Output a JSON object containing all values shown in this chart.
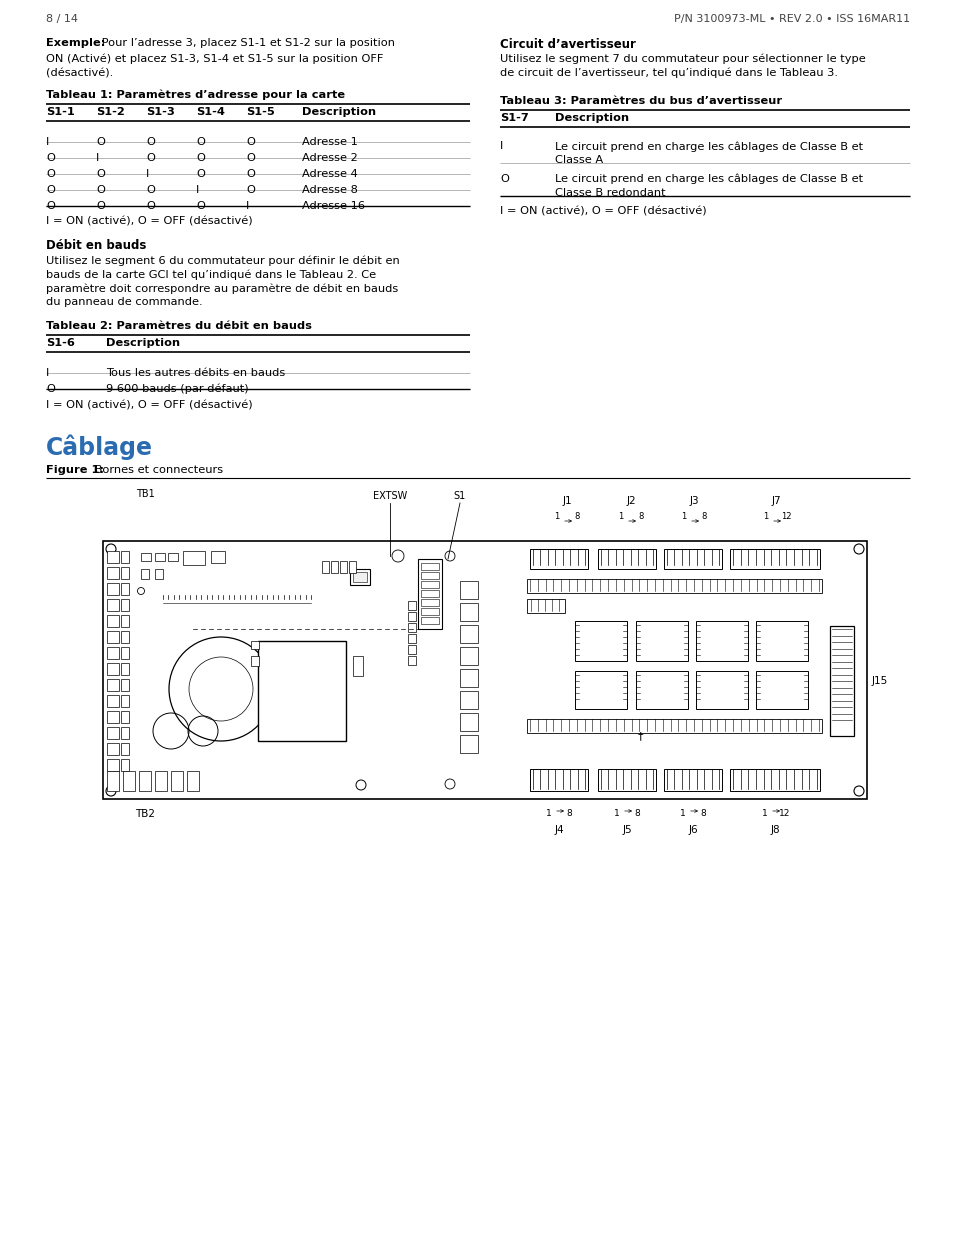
{
  "bg_color": "#ffffff",
  "page_width": 9.54,
  "page_height": 12.35,
  "left_col": {
    "example_bold": "Exemple:",
    "example_rest_line1": " Pour l’adresse 3, placez S1-1 et S1-2 sur la position",
    "example_line2": "ON (Activé) et placez S1-3, S1-4 et S1-5 sur la position OFF",
    "example_line3": "(désactivé).",
    "table1_title": "Tableau 1: Paramètres d’adresse pour la carte",
    "table1_headers": [
      "S1-1",
      "S1-2",
      "S1-3",
      "S1-4",
      "S1-5",
      "Description"
    ],
    "table1_rows": [
      [
        "I",
        "O",
        "O",
        "O",
        "O",
        "Adresse 1"
      ],
      [
        "O",
        "I",
        "O",
        "O",
        "O",
        "Adresse 2"
      ],
      [
        "O",
        "O",
        "I",
        "O",
        "O",
        "Adresse 4"
      ],
      [
        "O",
        "O",
        "O",
        "I",
        "O",
        "Adresse 8"
      ],
      [
        "O",
        "O",
        "O",
        "O",
        "I",
        "Adresse 16"
      ]
    ],
    "table1_note": "I = ON (activé), O = OFF (désactivé)",
    "baud_title": "Débit en bauds",
    "baud_lines": [
      "Utilisez le segment 6 du commutateur pour définir le débit en",
      "bauds de la carte GCI tel qu’indiqué dans le Tableau 2. Ce",
      "paramètre doit correspondre au paramètre de débit en bauds",
      "du panneau de commande."
    ],
    "table2_title": "Tableau 2: Paramètres du débit en bauds",
    "table2_headers": [
      "S1-6",
      "Description"
    ],
    "table2_rows": [
      [
        "I",
        "Tous les autres débits en bauds"
      ],
      [
        "O",
        "9 600 bauds (par défaut)"
      ]
    ],
    "table2_note": "I = ON (activé), O = OFF (désactivé)"
  },
  "right_col": {
    "circuit_title": "Circuit d’avertisseur",
    "circuit_lines": [
      "Utilisez le segment 7 du commutateur pour sélectionner le type",
      "de circuit de l’avertisseur, tel qu’indiqué dans le Tableau 3."
    ],
    "table3_title": "Tableau 3: Paramètres du bus d’avertisseur",
    "table3_headers": [
      "S1-7",
      "Description"
    ],
    "table3_rows": [
      [
        "I",
        [
          "Le circuit prend en charge les câblages de Classe B et",
          "Classe A"
        ]
      ],
      [
        "O",
        [
          "Le circuit prend en charge les câblages de Classe B et",
          "Classe B redondant"
        ]
      ]
    ],
    "table3_note": "I = ON (activé), O = OFF (désactivé)"
  },
  "cablage_title": "Câblage",
  "figure_label_bold": "Figure 1:",
  "figure_label_rest": " Bornes et connecteurs",
  "board_labels_top": [
    "TB1",
    "EXTSW",
    "S1",
    "J1",
    "J2",
    "J3",
    "J7"
  ],
  "board_labels_bot": [
    "TB2",
    "J4",
    "J5",
    "J6",
    "J8"
  ],
  "j15_label": "J15",
  "footer_left": "8 / 14",
  "footer_right": "P/N 3100973-ML • REV 2.0 • ISS 16MAR11"
}
